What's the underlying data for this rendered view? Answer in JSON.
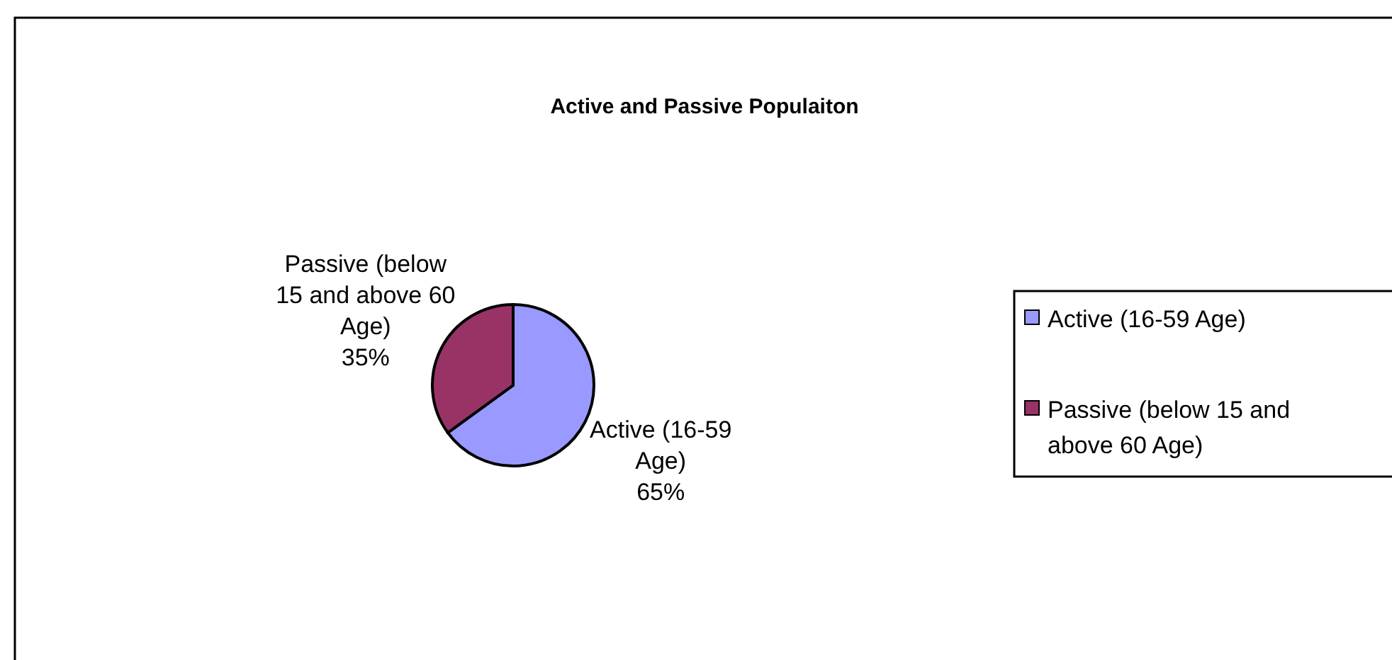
{
  "chart_data": {
    "type": "pie",
    "title": "Active and Passive Populaiton",
    "categories": [
      "Active (16-59 Age)",
      "Passive (below 15 and above 60 Age)"
    ],
    "values": [
      65,
      35
    ],
    "colors": [
      "#9999ff",
      "#993366"
    ],
    "value_labels": [
      "65%",
      "35%"
    ],
    "legend": "right"
  }
}
